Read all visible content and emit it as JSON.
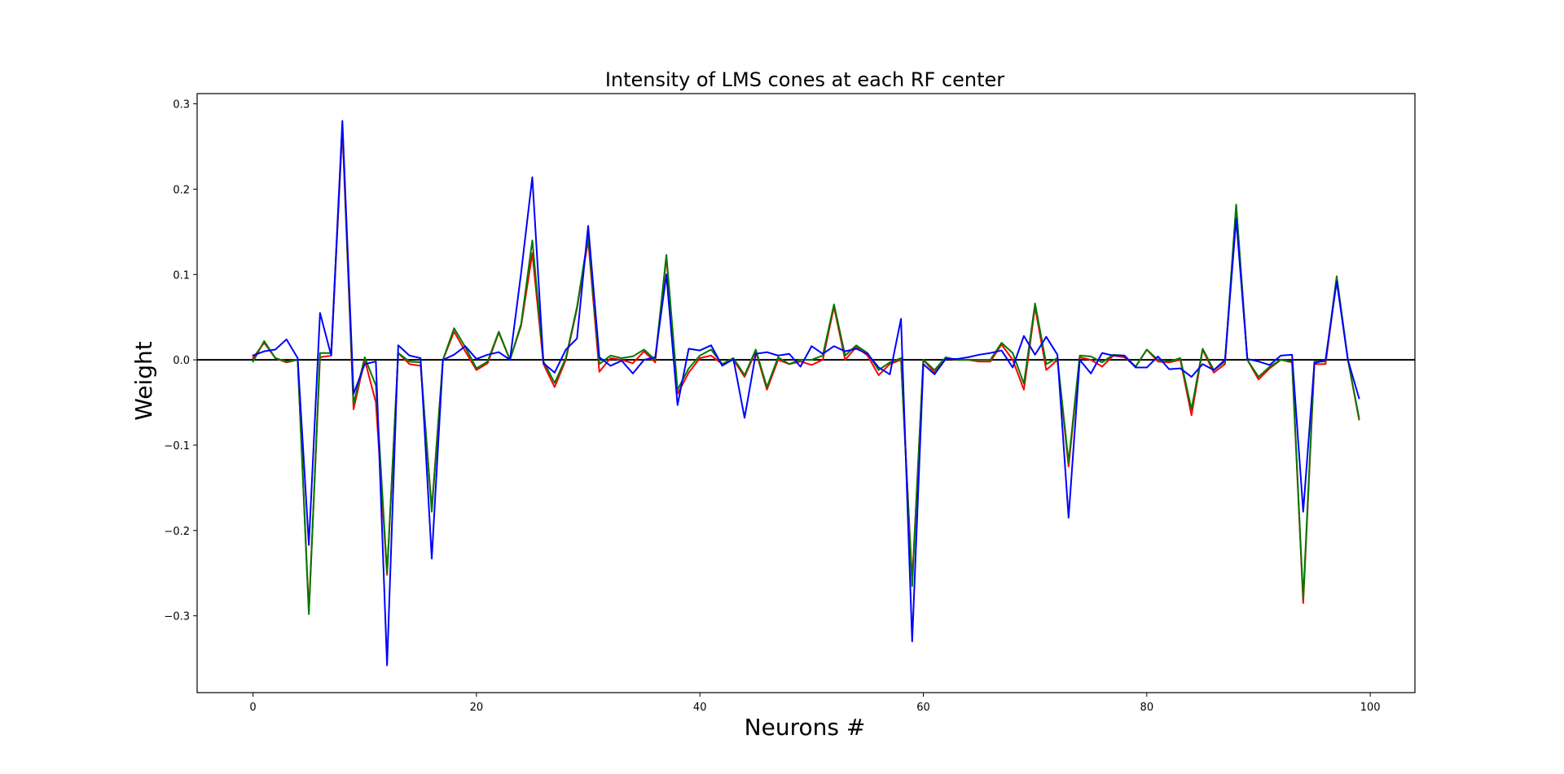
{
  "chart_data": {
    "type": "line",
    "title": "Intensity of LMS cones at each RF center",
    "xlabel": "Neurons #",
    "ylabel": "Weight",
    "xlim": [
      -5,
      104
    ],
    "ylim": [
      -0.39,
      0.312
    ],
    "xticks": [
      0,
      20,
      40,
      60,
      80,
      100
    ],
    "yticks": [
      -0.3,
      -0.2,
      -0.1,
      0.0,
      0.1,
      0.2,
      0.3
    ],
    "xtick_labels": [
      "0",
      "20",
      "40",
      "60",
      "80",
      "100"
    ],
    "ytick_labels": [
      "−0.3",
      "−0.2",
      "−0.1",
      "0.0",
      "0.1",
      "0.2",
      "0.3"
    ],
    "hline": 0,
    "grid": false,
    "x": [
      0,
      1,
      2,
      3,
      4,
      5,
      6,
      7,
      8,
      9,
      10,
      11,
      12,
      13,
      14,
      15,
      16,
      17,
      18,
      19,
      20,
      21,
      22,
      23,
      24,
      25,
      26,
      27,
      28,
      29,
      30,
      31,
      32,
      33,
      34,
      35,
      36,
      37,
      38,
      39,
      40,
      41,
      42,
      43,
      44,
      45,
      46,
      47,
      48,
      49,
      50,
      51,
      52,
      53,
      54,
      55,
      56,
      57,
      58,
      59,
      60,
      61,
      62,
      63,
      64,
      65,
      66,
      67,
      68,
      69,
      70,
      71,
      72,
      73,
      74,
      75,
      76,
      77,
      78,
      79,
      80,
      81,
      82,
      83,
      84,
      85,
      86,
      87,
      88,
      89,
      90,
      91,
      92,
      93,
      94,
      95,
      96,
      97,
      98,
      99
    ],
    "series": [
      {
        "color": "#ff0000",
        "values": [
          0.002,
          0.02,
          0.002,
          -0.003,
          0.0,
          -0.295,
          0.003,
          0.005,
          0.27,
          -0.058,
          0.0,
          -0.05,
          -0.252,
          0.008,
          -0.005,
          -0.007,
          -0.175,
          0.0,
          0.033,
          0.01,
          -0.012,
          -0.004,
          0.032,
          0.0,
          0.04,
          0.125,
          -0.005,
          -0.032,
          0.0,
          0.06,
          0.14,
          -0.014,
          0.002,
          0.0,
          -0.004,
          0.01,
          -0.003,
          0.12,
          -0.04,
          -0.015,
          0.002,
          0.005,
          -0.005,
          0.0,
          -0.02,
          0.01,
          -0.035,
          0.0,
          -0.005,
          -0.002,
          -0.006,
          0.0,
          0.062,
          0.0,
          0.015,
          0.005,
          -0.018,
          -0.005,
          0.0,
          -0.26,
          0.0,
          -0.015,
          0.002,
          0.0,
          0.0,
          -0.002,
          -0.002,
          0.018,
          0.0,
          -0.035,
          0.062,
          -0.012,
          0.0,
          -0.125,
          0.003,
          0.0,
          -0.008,
          0.005,
          0.003,
          -0.008,
          0.012,
          -0.002,
          -0.003,
          0.0,
          -0.065,
          0.012,
          -0.015,
          -0.005,
          0.18,
          0.0,
          -0.023,
          -0.01,
          0.0,
          -0.003,
          -0.285,
          -0.005,
          -0.005,
          0.095,
          0.0,
          -0.07
        ]
      },
      {
        "color": "#007a00",
        "values": [
          -0.002,
          0.022,
          0.002,
          -0.002,
          0.0,
          -0.298,
          0.008,
          0.008,
          0.275,
          -0.052,
          0.003,
          -0.03,
          -0.25,
          0.008,
          -0.002,
          -0.003,
          -0.178,
          0.0,
          0.037,
          0.015,
          -0.01,
          -0.002,
          0.033,
          0.0,
          0.042,
          0.14,
          -0.002,
          -0.027,
          0.002,
          0.062,
          0.145,
          -0.005,
          0.005,
          0.002,
          0.004,
          0.012,
          0.0,
          0.123,
          -0.035,
          -0.01,
          0.005,
          0.012,
          -0.005,
          0.002,
          -0.018,
          0.012,
          -0.032,
          0.003,
          -0.005,
          0.0,
          0.0,
          0.005,
          0.065,
          0.005,
          0.017,
          0.008,
          -0.012,
          -0.003,
          0.002,
          -0.265,
          0.0,
          -0.012,
          0.003,
          0.0,
          0.0,
          0.0,
          0.0,
          0.02,
          0.008,
          -0.028,
          0.066,
          -0.005,
          0.002,
          -0.12,
          0.005,
          0.004,
          -0.003,
          0.006,
          0.005,
          -0.008,
          0.012,
          0.0,
          -0.002,
          0.002,
          -0.058,
          0.013,
          -0.012,
          -0.002,
          0.182,
          0.0,
          -0.02,
          -0.008,
          0.0,
          -0.002,
          -0.28,
          -0.002,
          -0.002,
          0.098,
          0.0,
          -0.068
        ]
      },
      {
        "color": "#0000ff",
        "values": [
          0.005,
          0.01,
          0.012,
          0.024,
          0.002,
          -0.217,
          0.055,
          0.005,
          0.28,
          -0.04,
          -0.005,
          -0.002,
          -0.358,
          0.017,
          0.005,
          0.002,
          -0.233,
          0.0,
          0.006,
          0.016,
          0.001,
          0.006,
          0.009,
          0.0,
          0.102,
          0.214,
          -0.004,
          -0.015,
          0.012,
          0.025,
          0.157,
          0.003,
          -0.007,
          -0.001,
          -0.016,
          0.0,
          0.003,
          0.1,
          -0.053,
          0.013,
          0.011,
          0.017,
          -0.007,
          0.001,
          -0.068,
          0.007,
          0.009,
          0.005,
          0.007,
          -0.008,
          0.016,
          0.007,
          0.016,
          0.01,
          0.013,
          0.007,
          -0.009,
          -0.017,
          0.048,
          -0.33,
          -0.005,
          -0.017,
          0.001,
          0.001,
          0.003,
          0.006,
          0.008,
          0.011,
          -0.009,
          0.028,
          0.006,
          0.027,
          0.006,
          -0.185,
          0.0,
          -0.016,
          0.008,
          0.005,
          0.005,
          -0.009,
          -0.009,
          0.004,
          -0.011,
          -0.01,
          -0.02,
          -0.005,
          -0.012,
          0.0,
          0.165,
          0.001,
          -0.002,
          -0.006,
          0.005,
          0.006,
          -0.178,
          -0.004,
          0.0,
          0.092,
          0.0,
          -0.045
        ]
      }
    ]
  }
}
